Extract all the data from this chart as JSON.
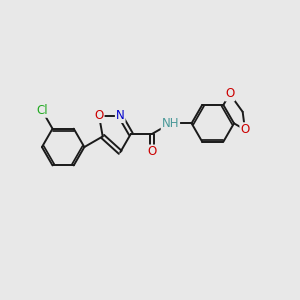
{
  "bg_color": "#e8e8e8",
  "bond_color": "#1a1a1a",
  "atom_colors": {
    "O": "#cc0000",
    "N": "#0000cc",
    "Cl": "#22aa22",
    "NH": "#4a9999",
    "C": "#1a1a1a"
  },
  "font_size": 8.5,
  "bond_width": 1.4,
  "figsize": [
    3.0,
    3.0
  ],
  "dpi": 100
}
